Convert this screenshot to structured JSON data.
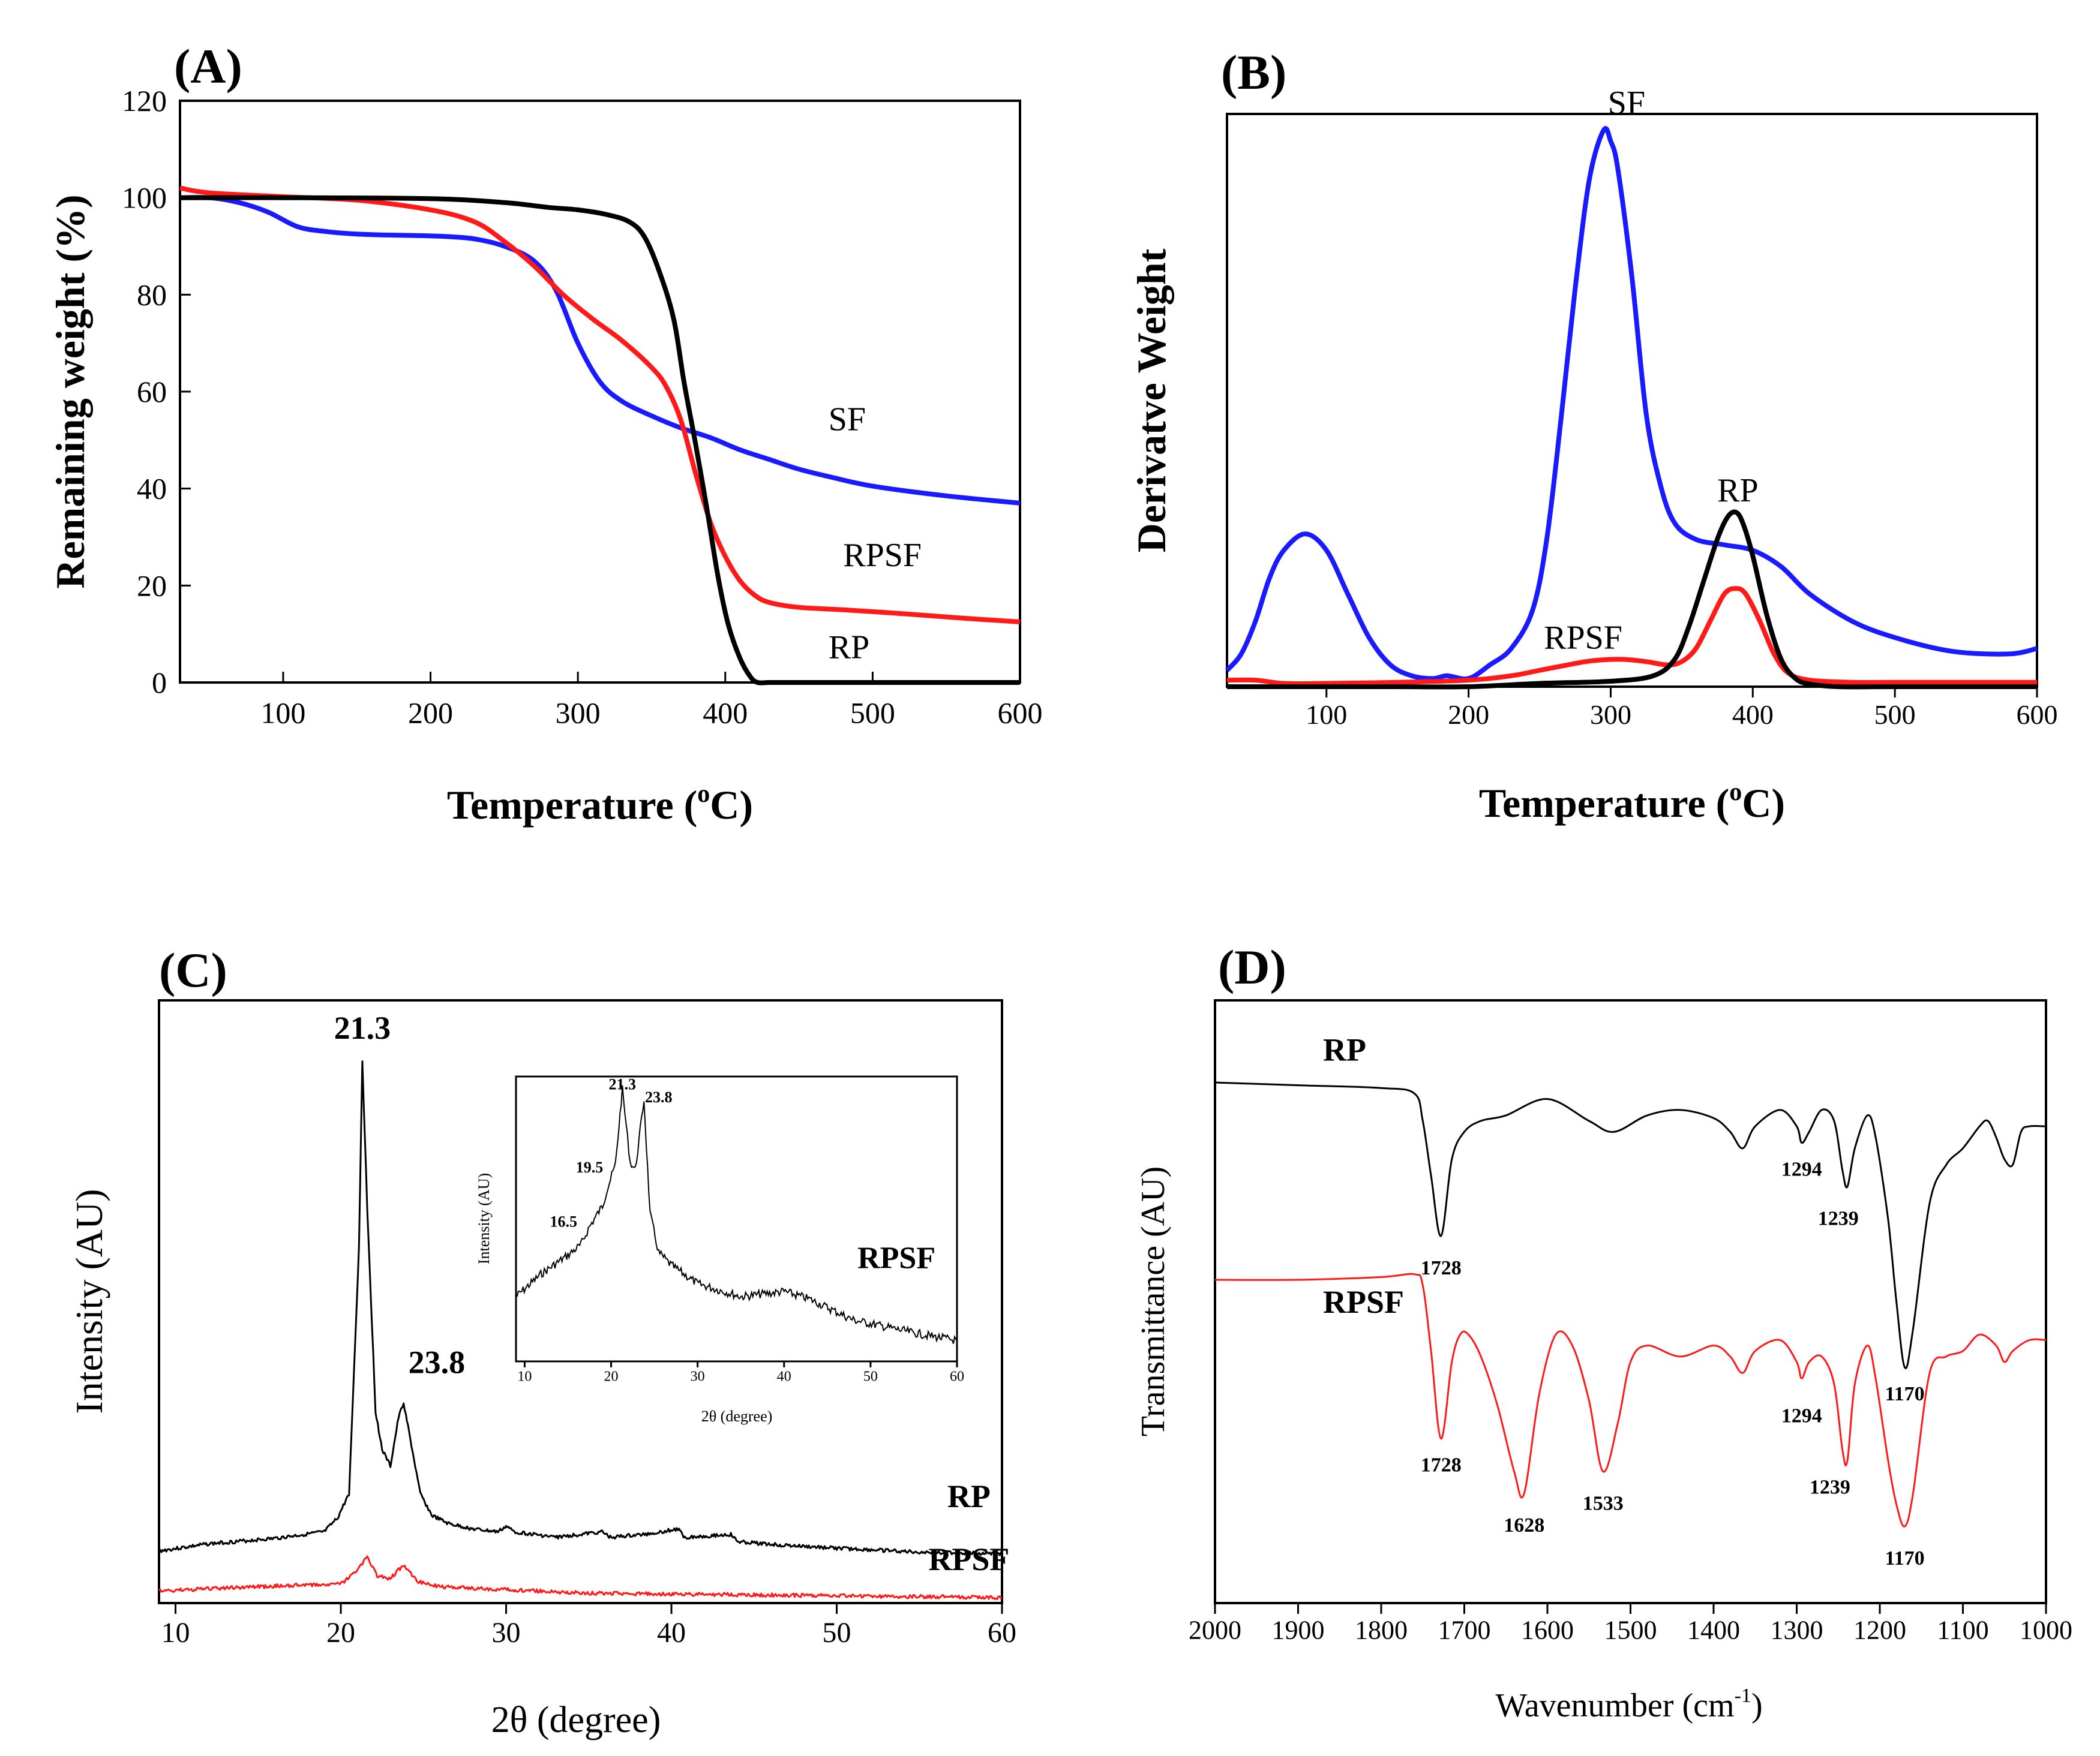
{
  "colors": {
    "sf": "#1a1aff",
    "rpsf": "#ff1a1a",
    "rp": "#000000"
  },
  "chart_data": [
    {
      "type": "line",
      "panel_label": "(A)",
      "xlabel_main": "Temperature (",
      "xlabel_sup": "o",
      "xlabel_end": "C)",
      "ylabel": "Remaining weight (%)",
      "xlim": [
        30,
        600
      ],
      "ylim": [
        0,
        120
      ],
      "xticks": [
        100,
        200,
        300,
        400,
        500,
        600
      ],
      "yticks": [
        0,
        20,
        40,
        60,
        80,
        100,
        120
      ],
      "series": [
        {
          "name": "SF",
          "color": "#1a1aff",
          "x": [
            30,
            50,
            70,
            90,
            110,
            130,
            150,
            170,
            190,
            210,
            230,
            250,
            270,
            285,
            300,
            315,
            330,
            350,
            370,
            390,
            410,
            430,
            450,
            470,
            500,
            550,
            600
          ],
          "y": [
            100,
            100,
            99,
            97,
            94,
            93,
            92.5,
            92.3,
            92.2,
            92,
            91.5,
            90,
            87,
            81,
            70,
            62,
            58,
            55,
            52.5,
            50.5,
            48,
            46,
            44,
            42.5,
            40.5,
            38.5,
            37
          ]
        },
        {
          "name": "RPSF",
          "color": "#ff1a1a",
          "x": [
            30,
            50,
            100,
            150,
            200,
            230,
            250,
            270,
            290,
            310,
            330,
            350,
            360,
            370,
            380,
            390,
            400,
            410,
            420,
            430,
            450,
            480,
            520,
            560,
            600
          ],
          "y": [
            102,
            101,
            100.2,
            99.5,
            97.5,
            95,
            91,
            86,
            80,
            75,
            70.5,
            65,
            61,
            54,
            43,
            33,
            26,
            21,
            18,
            16.5,
            15.5,
            15,
            14.2,
            13.3,
            12.5
          ]
        },
        {
          "name": "RP",
          "color": "#000000",
          "x": [
            30,
            100,
            200,
            250,
            280,
            300,
            320,
            335,
            345,
            355,
            365,
            372,
            380,
            388,
            395,
            402,
            410,
            417,
            422,
            430,
            450,
            500,
            600
          ],
          "y": [
            100,
            100,
            99.8,
            99,
            98,
            97.5,
            96.5,
            95,
            92,
            85,
            75,
            62,
            49,
            35,
            22,
            12,
            5,
            1.2,
            0,
            0,
            0,
            0,
            0
          ]
        }
      ],
      "annotations": [
        {
          "text": "SF",
          "x": 470,
          "y": 52
        },
        {
          "text": "RPSF",
          "x": 480,
          "y": 24
        },
        {
          "text": "RP",
          "x": 470,
          "y": 5
        }
      ]
    },
    {
      "type": "line",
      "panel_label": "(B)",
      "xlabel_main": "Temperature (",
      "xlabel_sup": "o",
      "xlabel_end": "C)",
      "ylabel": "Derivatve Weight",
      "xlim": [
        30,
        600
      ],
      "ylim": [
        0,
        1.05
      ],
      "xticks": [
        100,
        200,
        300,
        400,
        500,
        600
      ],
      "series": [
        {
          "name": "SF",
          "color": "#1a1aff",
          "x": [
            30,
            40,
            50,
            60,
            70,
            85,
            100,
            115,
            130,
            145,
            160,
            175,
            185,
            200,
            215,
            230,
            245,
            255,
            265,
            275,
            285,
            295,
            300,
            305,
            315,
            325,
            335,
            345,
            360,
            380,
            400,
            420,
            440,
            470,
            500,
            540,
            580,
            600
          ],
          "y": [
            0.03,
            0.06,
            0.12,
            0.2,
            0.25,
            0.28,
            0.25,
            0.17,
            0.09,
            0.04,
            0.02,
            0.015,
            0.02,
            0.015,
            0.04,
            0.07,
            0.14,
            0.27,
            0.49,
            0.73,
            0.93,
            1.02,
            1.0,
            0.95,
            0.75,
            0.5,
            0.37,
            0.3,
            0.27,
            0.26,
            0.25,
            0.22,
            0.17,
            0.12,
            0.09,
            0.065,
            0.06,
            0.07
          ]
        },
        {
          "name": "RPSF",
          "color": "#ff1a1a",
          "x": [
            30,
            50,
            70,
            100,
            150,
            200,
            230,
            250,
            270,
            285,
            300,
            310,
            325,
            340,
            350,
            360,
            370,
            380,
            388,
            395,
            405,
            415,
            425,
            440,
            470,
            500,
            550,
            600
          ],
          "y": [
            0.012,
            0.012,
            0.006,
            0.006,
            0.008,
            0.012,
            0.02,
            0.03,
            0.04,
            0.047,
            0.05,
            0.05,
            0.046,
            0.04,
            0.046,
            0.07,
            0.12,
            0.17,
            0.18,
            0.17,
            0.12,
            0.06,
            0.025,
            0.012,
            0.008,
            0.008,
            0.008,
            0.008
          ]
        },
        {
          "name": "RP",
          "color": "#000000",
          "x": [
            30,
            100,
            150,
            200,
            250,
            300,
            330,
            345,
            355,
            365,
            375,
            382,
            388,
            393,
            400,
            410,
            420,
            430,
            440,
            460,
            500,
            600
          ],
          "y": [
            0,
            0,
            0,
            0,
            0.006,
            0.01,
            0.02,
            0.05,
            0.11,
            0.19,
            0.27,
            0.31,
            0.32,
            0.3,
            0.24,
            0.13,
            0.05,
            0.015,
            0.005,
            0,
            0,
            0
          ]
        }
      ],
      "annotations": [
        {
          "text": "SF",
          "x": 298,
          "y": 1.05
        },
        {
          "text": "RP",
          "x": 375,
          "y": 0.34
        },
        {
          "text": "RPSF",
          "x": 253,
          "y": 0.07
        }
      ]
    },
    {
      "type": "line",
      "panel_label": "(C)",
      "xlabel": "2θ (degree)",
      "ylabel": "Intensity (AU)",
      "xlim": [
        9,
        60
      ],
      "ylim": [
        0,
        1.1
      ],
      "xticks": [
        10,
        20,
        30,
        40,
        50,
        60
      ],
      "series": [
        {
          "name": "RP",
          "color": "#000000",
          "x": [
            9,
            12,
            16,
            19,
            19.8,
            20.5,
            21.1,
            21.3,
            21.6,
            22.1,
            22.5,
            23.0,
            23.5,
            23.8,
            24.2,
            24.8,
            25.5,
            26.5,
            28,
            29.5,
            30,
            30.5,
            33,
            35.8,
            36.3,
            38.3,
            40.4,
            40.8,
            43.6,
            44,
            47,
            50,
            55,
            60
          ],
          "y": [
            0.095,
            0.108,
            0.118,
            0.13,
            0.155,
            0.2,
            0.65,
            0.99,
            0.72,
            0.35,
            0.28,
            0.25,
            0.34,
            0.365,
            0.3,
            0.2,
            0.16,
            0.145,
            0.135,
            0.13,
            0.14,
            0.13,
            0.12,
            0.13,
            0.12,
            0.125,
            0.135,
            0.12,
            0.125,
            0.112,
            0.105,
            0.1,
            0.093,
            0.09
          ]
        },
        {
          "name": "RPSF",
          "color": "#ff1a1a",
          "x": [
            9,
            15,
            20,
            21.0,
            21.6,
            22.2,
            23.0,
            23.8,
            24.6,
            26,
            28,
            35,
            45,
            60
          ],
          "y": [
            0.022,
            0.03,
            0.035,
            0.06,
            0.085,
            0.05,
            0.045,
            0.07,
            0.04,
            0.03,
            0.027,
            0.018,
            0.015,
            0.01
          ]
        }
      ],
      "annotations": [
        {
          "text": "21.3",
          "x": 21.3,
          "y": 1.03
        },
        {
          "text": "23.8",
          "x": 25.8,
          "y": 0.42
        },
        {
          "text": "RP",
          "x": 58,
          "y": 0.175
        },
        {
          "text": "RPSF",
          "x": 58,
          "y": 0.06
        }
      ],
      "inset": {
        "xlabel": "2θ (degree)",
        "ylabel": "Intensity (AU)",
        "xlim": [
          9,
          60
        ],
        "ylim": [
          0,
          1.1
        ],
        "xticks": [
          10,
          20,
          30,
          40,
          50,
          60
        ],
        "label": "RPSF",
        "x": [
          9,
          12,
          15,
          16.5,
          17.5,
          19,
          19.5,
          20.5,
          21.3,
          22.2,
          22.8,
          23.8,
          24.5,
          25.5,
          27,
          30,
          35,
          40,
          43,
          48,
          55,
          60
        ],
        "y": [
          0.25,
          0.34,
          0.41,
          0.45,
          0.52,
          0.6,
          0.66,
          0.76,
          1.05,
          0.77,
          0.74,
          1.01,
          0.57,
          0.42,
          0.37,
          0.3,
          0.25,
          0.27,
          0.24,
          0.16,
          0.11,
          0.08
        ],
        "annotations": [
          {
            "text": "21.3",
            "x": 21.3,
            "y": 1.05
          },
          {
            "text": "23.8",
            "x": 25.5,
            "y": 1.0
          },
          {
            "text": "19.5",
            "x": 17.5,
            "y": 0.73
          },
          {
            "text": "16.5",
            "x": 14.5,
            "y": 0.52
          }
        ]
      }
    },
    {
      "type": "line",
      "panel_label": "(D)",
      "xlabel_main": "Wavenumber (cm",
      "xlabel_sup": "-1",
      "xlabel_end": ")",
      "ylabel": "Transmittance (AU)",
      "xlim": [
        2000,
        1000
      ],
      "ylim": [
        0,
        1.1
      ],
      "xticks": [
        2000,
        1900,
        1800,
        1700,
        1600,
        1500,
        1400,
        1300,
        1200,
        1100,
        1000
      ],
      "series": [
        {
          "name": "RP",
          "color": "#000000",
          "x": [
            2000,
            1900,
            1800,
            1760,
            1750,
            1740,
            1728,
            1715,
            1700,
            1680,
            1650,
            1600,
            1550,
            1520,
            1480,
            1440,
            1400,
            1380,
            1365,
            1350,
            1320,
            1300,
            1294,
            1285,
            1270,
            1255,
            1245,
            1239,
            1230,
            1215,
            1205,
            1190,
            1180,
            1170,
            1160,
            1140,
            1120,
            1100,
            1080,
            1070,
            1060,
            1050,
            1040,
            1030,
            1020,
            1000
          ],
          "y": [
            0.95,
            0.945,
            0.94,
            0.93,
            0.88,
            0.78,
            0.67,
            0.81,
            0.86,
            0.88,
            0.89,
            0.92,
            0.88,
            0.86,
            0.89,
            0.9,
            0.885,
            0.86,
            0.83,
            0.87,
            0.9,
            0.87,
            0.84,
            0.86,
            0.9,
            0.88,
            0.79,
            0.76,
            0.83,
            0.89,
            0.85,
            0.7,
            0.55,
            0.43,
            0.5,
            0.73,
            0.8,
            0.83,
            0.87,
            0.88,
            0.85,
            0.81,
            0.8,
            0.86,
            0.87,
            0.87
          ]
        },
        {
          "name": "RPSF",
          "color": "#ff1a1a",
          "x": [
            2000,
            1900,
            1800,
            1760,
            1750,
            1740,
            1728,
            1715,
            1705,
            1695,
            1680,
            1660,
            1640,
            1628,
            1610,
            1590,
            1570,
            1550,
            1533,
            1515,
            1500,
            1480,
            1440,
            1400,
            1380,
            1365,
            1350,
            1320,
            1300,
            1294,
            1285,
            1270,
            1255,
            1245,
            1239,
            1230,
            1215,
            1205,
            1190,
            1180,
            1170,
            1160,
            1140,
            1120,
            1100,
            1080,
            1060,
            1050,
            1040,
            1020,
            1000
          ],
          "y": [
            0.59,
            0.59,
            0.595,
            0.6,
            0.58,
            0.46,
            0.3,
            0.44,
            0.49,
            0.49,
            0.45,
            0.36,
            0.24,
            0.2,
            0.38,
            0.49,
            0.47,
            0.37,
            0.24,
            0.33,
            0.44,
            0.47,
            0.45,
            0.47,
            0.45,
            0.42,
            0.46,
            0.48,
            0.44,
            0.41,
            0.44,
            0.45,
            0.4,
            0.28,
            0.26,
            0.4,
            0.47,
            0.41,
            0.26,
            0.18,
            0.14,
            0.2,
            0.42,
            0.45,
            0.46,
            0.49,
            0.47,
            0.44,
            0.46,
            0.48,
            0.48
          ]
        }
      ],
      "annotations": [
        {
          "text": "RP",
          "x": 1870,
          "y": 0.99
        },
        {
          "text": "RPSF",
          "x": 1870,
          "y": 0.53
        },
        {
          "text": "1728",
          "x": 1728,
          "y": 0.6,
          "bold": true
        },
        {
          "text": "1294",
          "x": 1294,
          "y": 0.78,
          "bold": true
        },
        {
          "text": "1239",
          "x": 1250,
          "y": 0.69,
          "bold": true
        },
        {
          "text": "1170",
          "x": 1170,
          "y": 0.37,
          "bold": true
        },
        {
          "text": "1728",
          "x": 1728,
          "y": 0.24,
          "bold": true
        },
        {
          "text": "1628",
          "x": 1628,
          "y": 0.13,
          "bold": true
        },
        {
          "text": "1533",
          "x": 1533,
          "y": 0.17,
          "bold": true
        },
        {
          "text": "1294",
          "x": 1294,
          "y": 0.33,
          "bold": true
        },
        {
          "text": "1239",
          "x": 1260,
          "y": 0.2,
          "bold": true
        },
        {
          "text": "1170",
          "x": 1170,
          "y": 0.07,
          "bold": true
        }
      ]
    }
  ]
}
